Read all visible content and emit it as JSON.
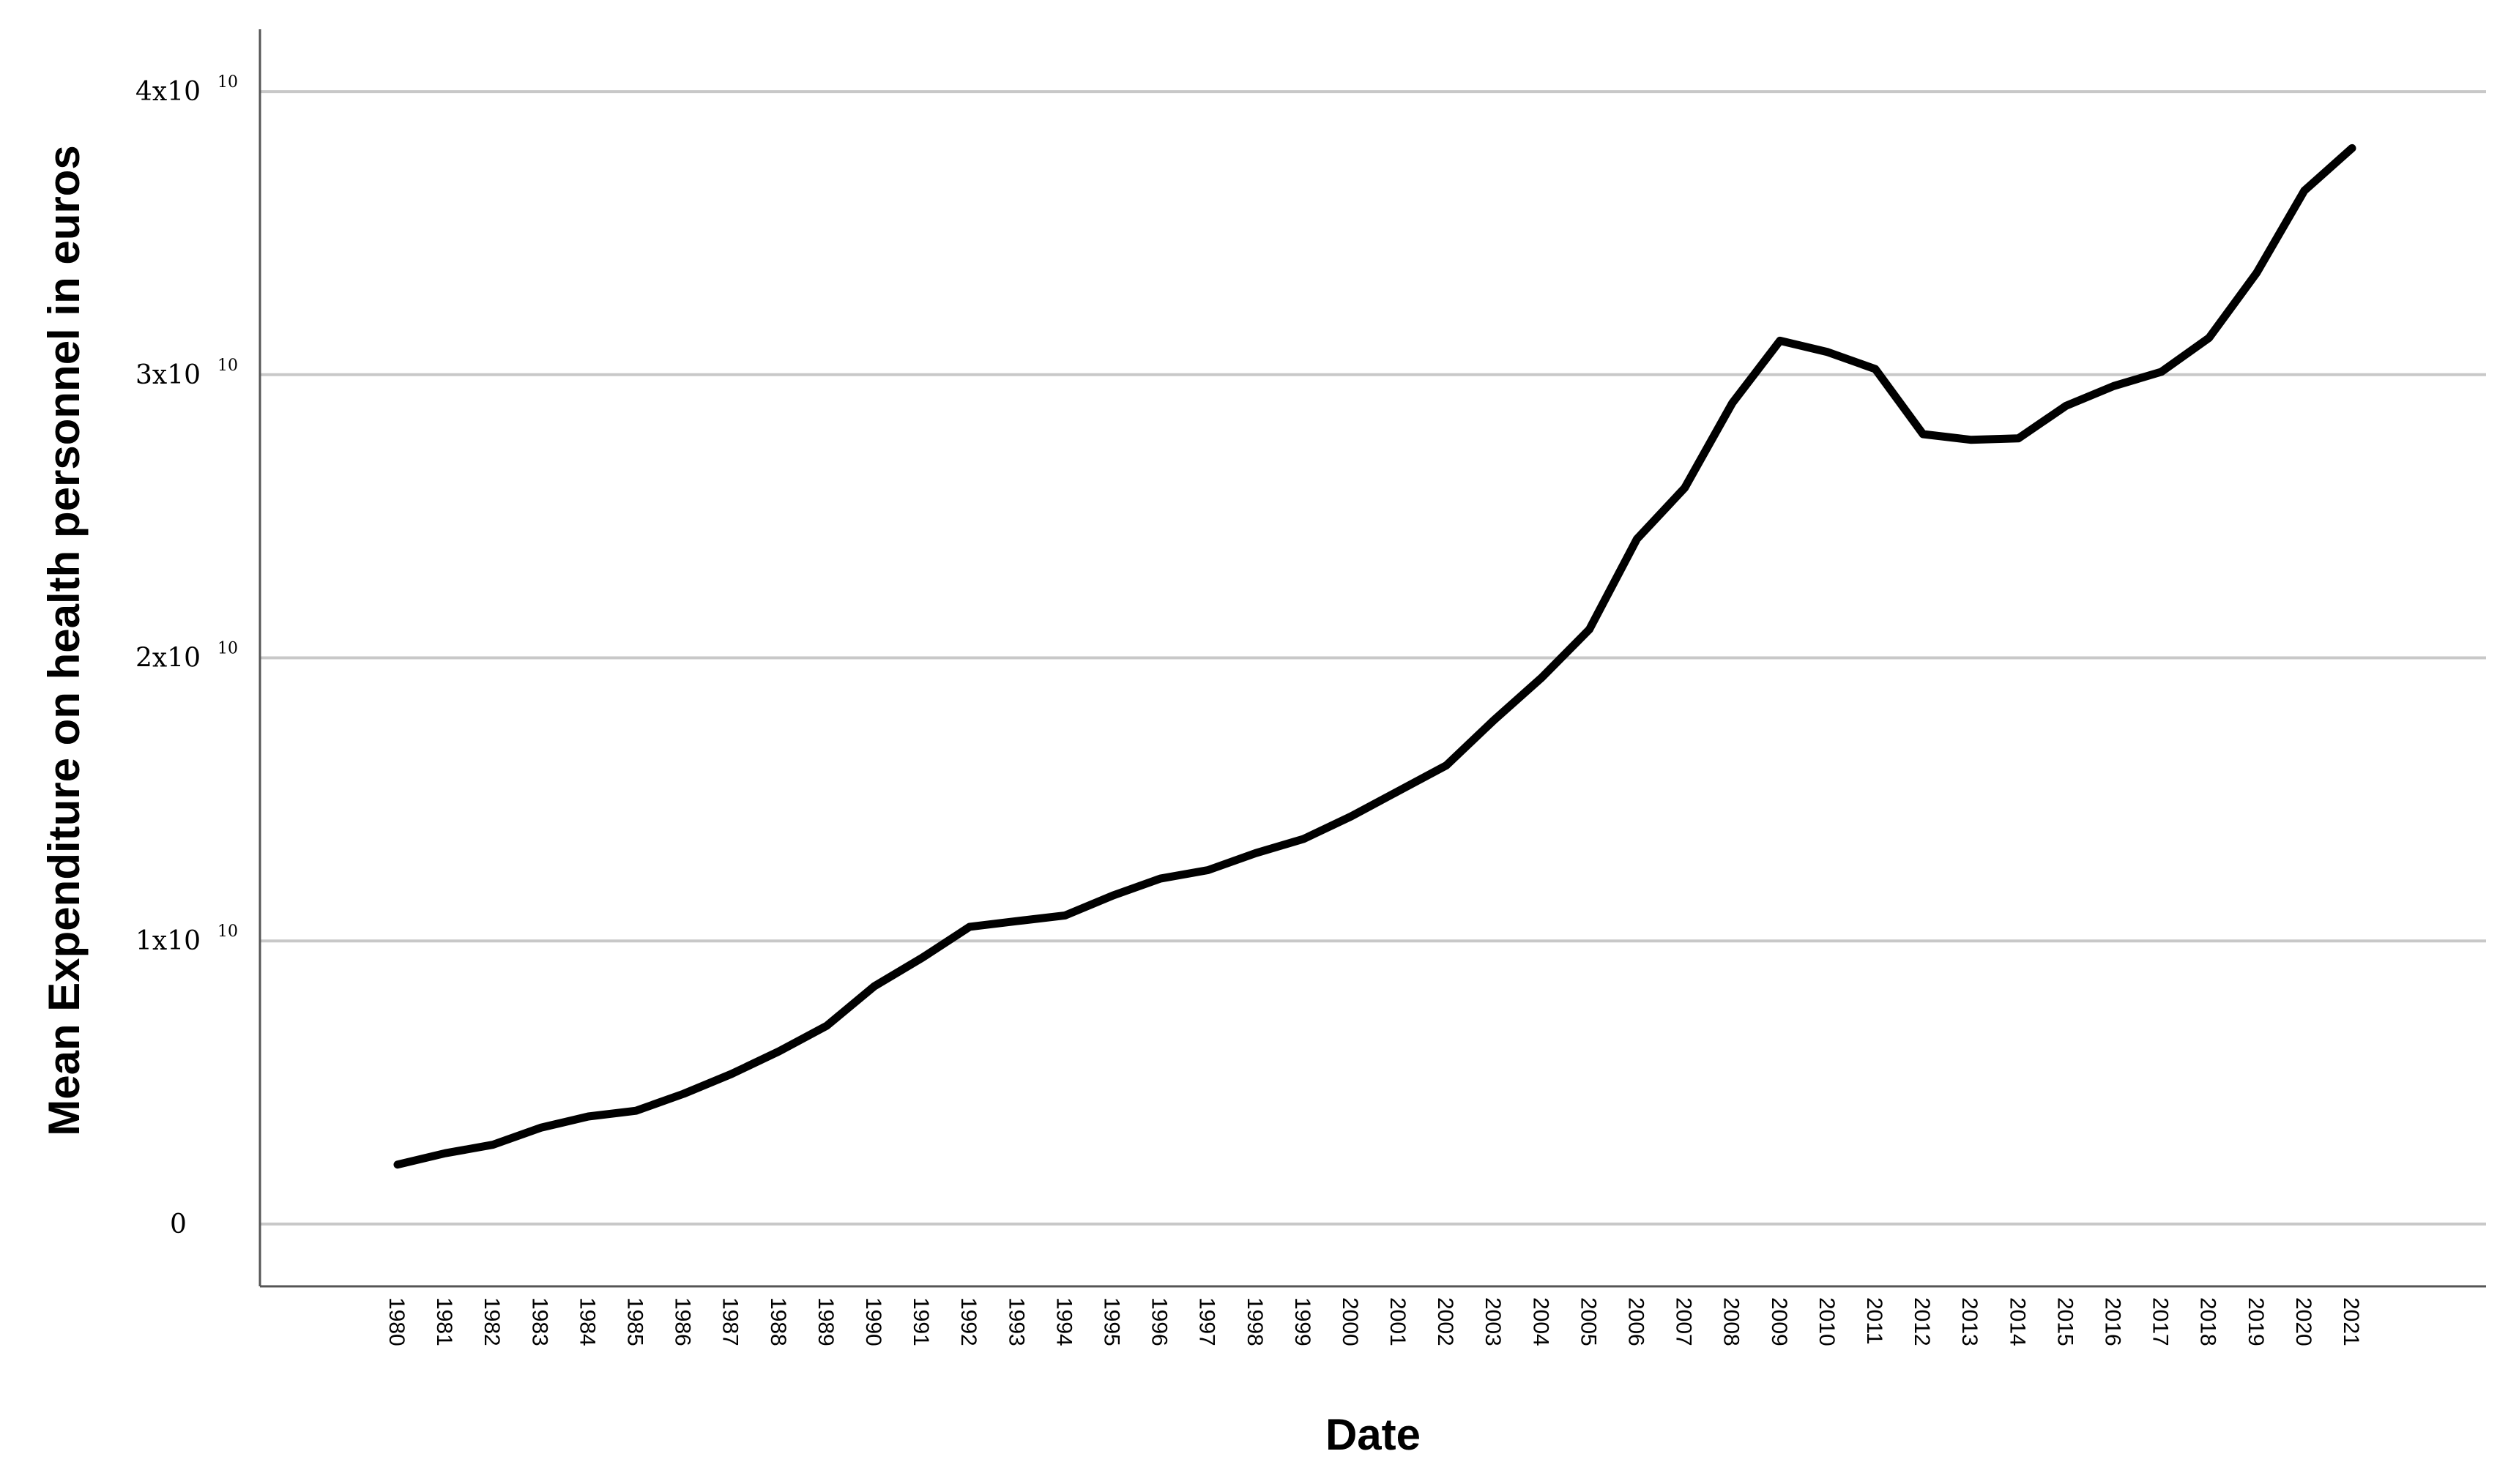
{
  "chart_data": {
    "type": "line",
    "title": "",
    "xlabel": "Date",
    "ylabel": "Mean Expenditure on health personnel in euros",
    "ylim": [
      -2200000000.0,
      42200000000.0
    ],
    "grid": "horizontal",
    "legend": "none",
    "line_color": "#000000",
    "y_ticks": [
      {
        "value": 0,
        "mantissa": "0",
        "exponent": ""
      },
      {
        "value": 10000000000.0,
        "mantissa": "1x10",
        "exponent": "10"
      },
      {
        "value": 20000000000.0,
        "mantissa": "2x10",
        "exponent": "10"
      },
      {
        "value": 30000000000.0,
        "mantissa": "3x10",
        "exponent": "10"
      },
      {
        "value": 40000000000.0,
        "mantissa": "4x10",
        "exponent": "10"
      }
    ],
    "categories": [
      "1980",
      "1981",
      "1982",
      "1983",
      "1984",
      "1985",
      "1986",
      "1987",
      "1988",
      "1989",
      "1990",
      "1991",
      "1992",
      "1993",
      "1994",
      "1995",
      "1996",
      "1997",
      "1998",
      "1999",
      "2000",
      "2001",
      "2002",
      "2003",
      "2004",
      "2005",
      "2006",
      "2007",
      "2008",
      "2009",
      "2010",
      "2011",
      "2012",
      "2013",
      "2014",
      "2015",
      "2016",
      "2017",
      "2018",
      "2019",
      "2020",
      "2021"
    ],
    "values": [
      2100000000.0,
      2500000000.0,
      2800000000.0,
      3400000000.0,
      3800000000.0,
      4000000000.0,
      4600000000.0,
      5300000000.0,
      6100000000.0,
      7000000000.0,
      8400000000.0,
      9400000000.0,
      10500000000.0,
      10700000000.0,
      10900000000.0,
      11600000000.0,
      12200000000.0,
      12500000000.0,
      13100000000.0,
      13600000000.0,
      14400000000.0,
      15300000000.0,
      16200000000.0,
      17800000000.0,
      19300000000.0,
      21000000000.0,
      24200000000.0,
      26000000000.0,
      29000000000.0,
      31200000000.0,
      30800000000.0,
      30200000000.0,
      27900000000.0,
      27700000000.0,
      27750000000.0,
      28900000000.0,
      29600000000.0,
      30100000000.0,
      31300000000.0,
      33600000000.0,
      36500000000.0,
      38000000000.0
    ]
  }
}
